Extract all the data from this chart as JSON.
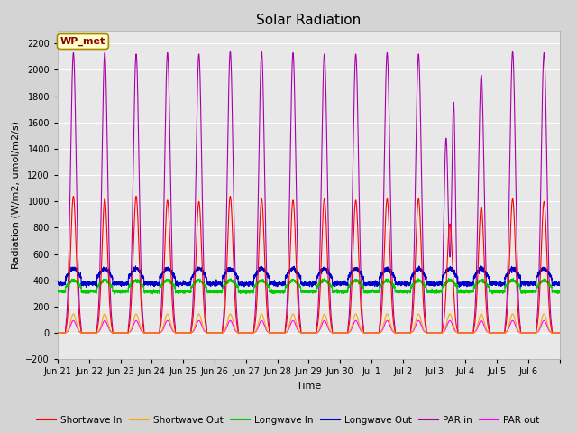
{
  "title": "Solar Radiation",
  "ylabel": "Radiation (W/m2, umol/m2/s)",
  "xlabel": "Time",
  "ylim": [
    -200,
    2300
  ],
  "yticks": [
    -200,
    0,
    200,
    400,
    600,
    800,
    1000,
    1200,
    1400,
    1600,
    1800,
    2000,
    2200
  ],
  "fig_bg_color": "#d4d4d4",
  "plot_bg_color": "#e8e8e8",
  "annotation_text": "WP_met",
  "annotation_bg": "#ffffcc",
  "annotation_border": "#aa8800",
  "series_colors": {
    "shortwave_in": "#ff0000",
    "shortwave_out": "#ffa500",
    "longwave_in": "#00cc00",
    "longwave_out": "#0000cc",
    "par_in": "#aa00aa",
    "par_out": "#ff00ff"
  },
  "legend_labels": [
    "Shortwave In",
    "Shortwave Out",
    "Longwave In",
    "Longwave Out",
    "PAR in",
    "PAR out"
  ],
  "n_days": 16,
  "shortwave_in_peaks": [
    1040,
    1020,
    1040,
    1010,
    1000,
    1040,
    1020,
    1010,
    1020,
    1010,
    1020,
    1020,
    830,
    960,
    1020,
    1000
  ],
  "par_in_peaks": [
    2130,
    2130,
    2120,
    2130,
    2120,
    2140,
    2140,
    2130,
    2120,
    2120,
    2130,
    2120,
    1480,
    1960,
    2140,
    2130
  ],
  "par_in_peaks2": [
    null,
    null,
    null,
    null,
    null,
    null,
    null,
    null,
    null,
    null,
    null,
    null,
    1750,
    null,
    null,
    null
  ],
  "longwave_out_base": 375,
  "longwave_out_day_peak": 490,
  "longwave_in_base": 315,
  "longwave_in_day_peak": 400,
  "shortwave_out_peak": 145,
  "par_out_peak": 95,
  "tick_labels_jun": [
    "Jun 21",
    "Jun 22",
    "Jun 23",
    "Jun 24",
    "Jun 25",
    "Jun 26",
    "Jun 27",
    "Jun 28",
    "Jun 29",
    "Jun 30"
  ],
  "tick_labels_jul": [
    "Jul 1",
    "Jul 2",
    "Jul 3",
    "Jul 4",
    "Jul 5",
    "Jul 6"
  ]
}
